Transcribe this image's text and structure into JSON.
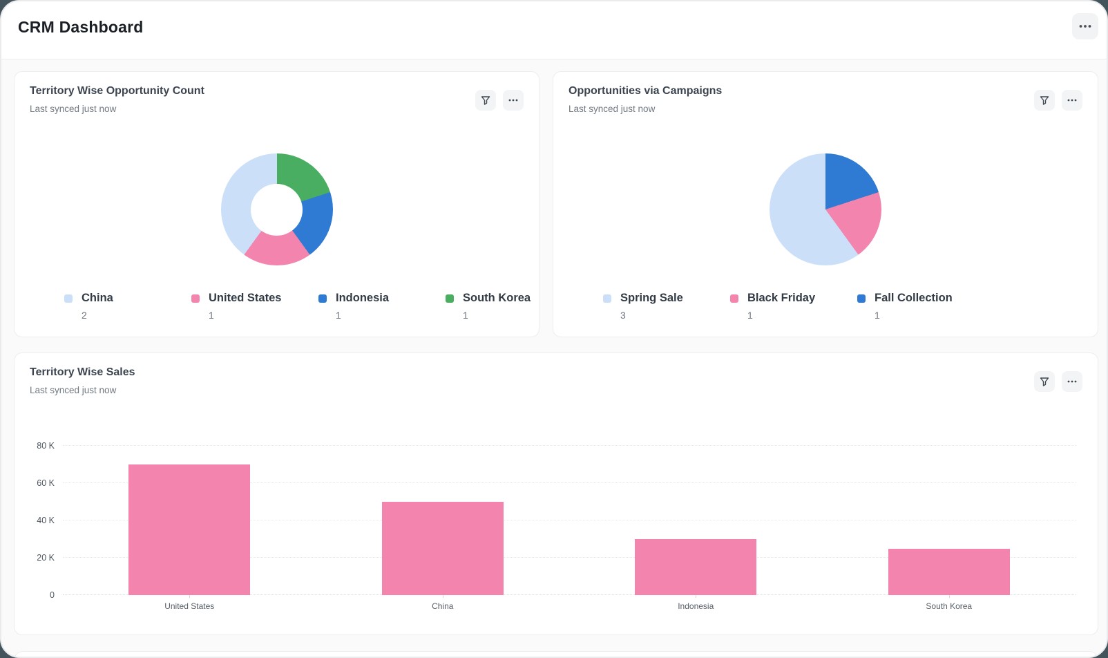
{
  "header": {
    "title": "CRM Dashboard"
  },
  "icons": {
    "header_more": "ellipsis-icon",
    "card_filter": "funnel-icon",
    "card_more": "ellipsis-icon"
  },
  "theme": {
    "surround": "#44545C",
    "card_background": "#FFFFFF",
    "card_border": "#EDEDED",
    "accent_pink": "#F284AE",
    "accent_light_blue": "#CBDFF8",
    "accent_blue": "#2F7AD2",
    "accent_green": "#49AE62"
  },
  "cards": [
    {
      "title": "Territory Wise Opportunity Count",
      "subtitle": "Last synced just now",
      "chart_data": {
        "type": "donut",
        "direction": "counterclockwise_from_top",
        "legend_position": "bottom",
        "series": [
          {
            "label": "China",
            "value": 2,
            "color": "#CBDFF8"
          },
          {
            "label": "United States",
            "value": 1,
            "color": "#F284AE"
          },
          {
            "label": "Indonesia",
            "value": 1,
            "color": "#2F7AD2"
          },
          {
            "label": "South Korea",
            "value": 1,
            "color": "#49AE62"
          }
        ]
      }
    },
    {
      "title": "Opportunities via Campaigns",
      "subtitle": "Last synced just now",
      "chart_data": {
        "type": "pie",
        "direction": "counterclockwise_from_top",
        "legend_position": "bottom",
        "series": [
          {
            "label": "Spring Sale",
            "value": 3,
            "color": "#CBDFF8"
          },
          {
            "label": "Black Friday",
            "value": 1,
            "color": "#F284AE"
          },
          {
            "label": "Fall Collection",
            "value": 1,
            "color": "#2F7AD2"
          }
        ]
      }
    },
    {
      "title": "Territory Wise Sales",
      "subtitle": "Last synced just now",
      "chart_data": {
        "type": "bar",
        "categories": [
          "United States",
          "China",
          "Indonesia",
          "South Korea"
        ],
        "values": [
          70000,
          50000,
          30000,
          25000
        ],
        "bar_color": "#F284AE",
        "ylim": [
          0,
          80000
        ],
        "ytick_labels": [
          "0",
          "20 K",
          "40 K",
          "60 K",
          "80 K"
        ],
        "grid": "horizontal-dotted"
      }
    }
  ]
}
